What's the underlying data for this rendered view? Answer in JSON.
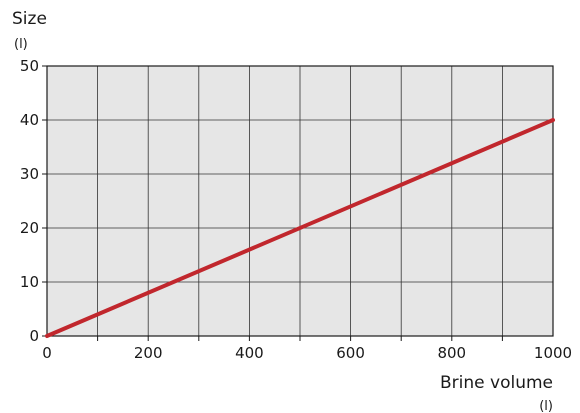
{
  "chart_data": {
    "type": "line",
    "title": "",
    "ylabel": "Size",
    "ylabel_unit": "(l)",
    "xlabel": "Brine volume",
    "xlabel_unit": "(l)",
    "xlim": [
      0,
      1000
    ],
    "ylim": [
      0,
      50
    ],
    "x_ticks": [
      0,
      200,
      400,
      600,
      800,
      1000
    ],
    "x_minor_step": 100,
    "y_ticks": [
      0,
      10,
      20,
      30,
      40,
      50
    ],
    "grid": true,
    "legend": "none",
    "series": [
      {
        "color": "#c1272d",
        "x": [
          0,
          1000
        ],
        "y": [
          0,
          40
        ]
      }
    ],
    "colors": {
      "plot_background": "#e6e6e6",
      "grid": "#333333",
      "axis": "#1a1a1a",
      "line": "#c1272d"
    }
  }
}
